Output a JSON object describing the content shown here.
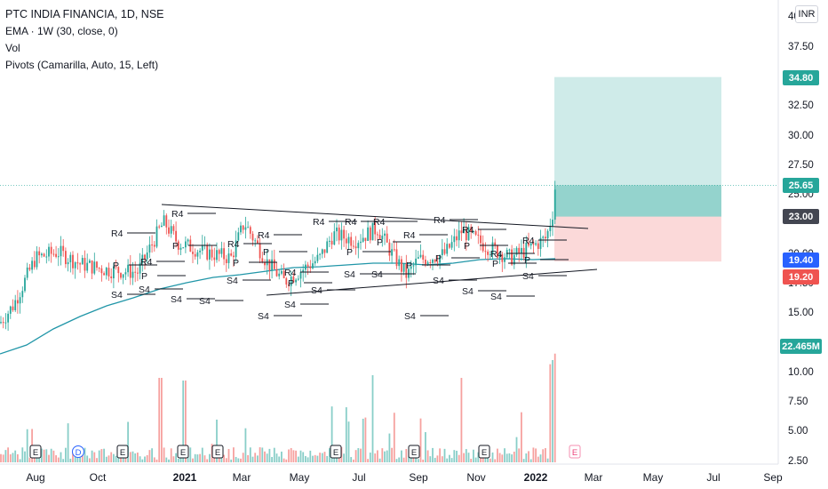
{
  "header": {
    "title": "PTC INDIA FINANCIA, 1D, NSE",
    "indicators": [
      "EMA · 1W (30, close, 0)",
      "Vol",
      "Pivots (Camarilla, Auto, 15, Left)"
    ]
  },
  "currency_button": "INR",
  "badges": {
    "target": "34.80",
    "last": "25.65",
    "entry": "23.00",
    "ema": "19.40",
    "stop": "19.20",
    "volume": "22.465M"
  },
  "colors": {
    "up": "#26a69a",
    "down": "#ef5350",
    "ema": "#2196a8",
    "target_zone": "#b2dfdb",
    "stop_zone": "#f8c5c4",
    "badge_green": "#26a69a",
    "badge_red": "#ef5350",
    "badge_blue": "#2962ff",
    "badge_gray": "#434651"
  },
  "chart_data": {
    "type": "candlestick",
    "price_axis": {
      "ticks": [
        "40",
        "37.50",
        "32.50",
        "30.00",
        "27.50",
        "25.00",
        "20.00",
        "17.50",
        "15.00"
      ],
      "range": [
        12.0,
        40.0
      ]
    },
    "volume_axis": {
      "ticks": [
        "10.00",
        "7.50",
        "5.00",
        "2.50"
      ],
      "unit": "M"
    },
    "time_axis": {
      "labels": [
        "Aug",
        "Oct",
        "2021",
        "Mar",
        "May",
        "Jul",
        "Sep",
        "Nov",
        "2022",
        "Mar",
        "May",
        "Jul",
        "Sep"
      ],
      "bold": [
        "2021",
        "2022"
      ]
    },
    "position": {
      "entry": 23.0,
      "target": 34.8,
      "stop": 19.2
    },
    "last_price": 25.65,
    "ema_last": 19.4,
    "pivot_labels": {
      "r4": "R4",
      "p": "P",
      "s4": "S4"
    },
    "events": [
      "E",
      "D",
      "E",
      "E",
      "E",
      "E",
      "E",
      "E"
    ],
    "future_event": "E"
  }
}
